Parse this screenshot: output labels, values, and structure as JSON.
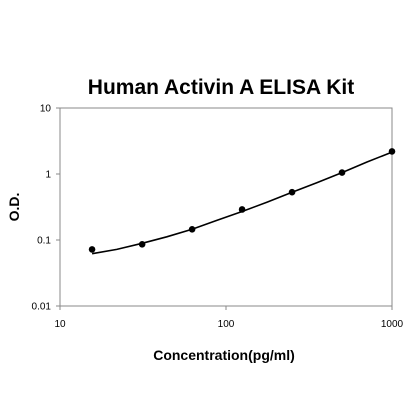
{
  "chart_data": {
    "type": "scatter",
    "title": "Human Activin A ELISA Kit",
    "xlabel": "Concentration(pg/ml)",
    "ylabel": "O.D.",
    "x_scale": "log",
    "y_scale": "log",
    "xlim": [
      10,
      1000
    ],
    "ylim": [
      0.01,
      10
    ],
    "x_ticks": [
      "10",
      "100",
      "1000"
    ],
    "y_ticks": [
      "10",
      "1",
      "0.1",
      "0.01"
    ],
    "grid": false,
    "series": [
      {
        "points": [
          {
            "x": 15.6,
            "y": 0.072
          },
          {
            "x": 31.25,
            "y": 0.086
          },
          {
            "x": 62.5,
            "y": 0.145
          },
          {
            "x": 125,
            "y": 0.29
          },
          {
            "x": 250,
            "y": 0.53
          },
          {
            "x": 500,
            "y": 1.05
          },
          {
            "x": 1000,
            "y": 2.2
          }
        ]
      }
    ],
    "fit_curve": [
      {
        "x": 15.6,
        "y": 0.062
      },
      {
        "x": 22,
        "y": 0.072
      },
      {
        "x": 31.25,
        "y": 0.089
      },
      {
        "x": 44,
        "y": 0.112
      },
      {
        "x": 62.5,
        "y": 0.145
      },
      {
        "x": 88,
        "y": 0.198
      },
      {
        "x": 125,
        "y": 0.27
      },
      {
        "x": 177,
        "y": 0.375
      },
      {
        "x": 250,
        "y": 0.53
      },
      {
        "x": 354,
        "y": 0.74
      },
      {
        "x": 500,
        "y": 1.05
      },
      {
        "x": 707,
        "y": 1.52
      },
      {
        "x": 1000,
        "y": 2.15
      }
    ]
  }
}
